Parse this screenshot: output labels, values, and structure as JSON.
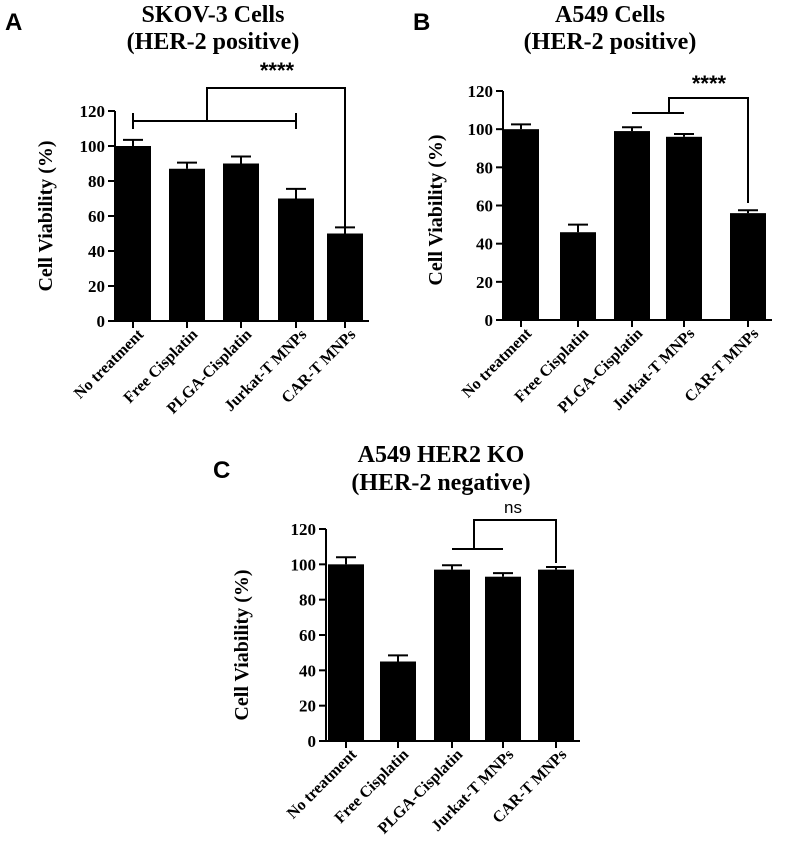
{
  "chart_data": [
    {
      "panel_label": "A",
      "type": "bar",
      "title": "SKOV-3 Cells",
      "subtitle": "(HER-2 positive)",
      "xlabel": "",
      "ylabel": "Cell  Viability (%)",
      "ylim": [
        0,
        120
      ],
      "yticks": [
        0,
        20,
        40,
        60,
        80,
        100,
        120
      ],
      "categories": [
        "No treatment",
        "Free Cisplatin",
        "PLGA-Cisplatin",
        "Jurkat-T MNPs",
        "CAR-T MNPs"
      ],
      "values": [
        100,
        87,
        90,
        70,
        50
      ],
      "errors": [
        3.5,
        3.5,
        4,
        5.5,
        3.5
      ],
      "bar_color": "#000000",
      "significance": {
        "label": "****",
        "group": [
          0,
          3
        ],
        "target": 4
      }
    },
    {
      "panel_label": "B",
      "type": "bar",
      "title": "A549 Cells",
      "subtitle": "(HER-2 positive)",
      "xlabel": "",
      "ylabel": "Cell  Viability (%)",
      "ylim": [
        0,
        120
      ],
      "yticks": [
        0,
        20,
        40,
        60,
        80,
        100,
        120
      ],
      "categories": [
        "No treatment",
        "Free Cisplatin",
        "PLGA-Cisplatin",
        "Jurkat-T MNPs",
        "CAR-T MNPs"
      ],
      "values": [
        100,
        46,
        99,
        96,
        56
      ],
      "errors": [
        2.5,
        4,
        2,
        1.5,
        1.5
      ],
      "bar_color": "#000000",
      "significance": {
        "label": "****",
        "group": [
          2,
          3
        ],
        "target": 4
      }
    },
    {
      "panel_label": "C",
      "type": "bar",
      "title": "A549 HER2 KO",
      "subtitle": "(HER-2 negative)",
      "xlabel": "",
      "ylabel": "Cell  Viability (%)",
      "ylim": [
        0,
        120
      ],
      "yticks": [
        0,
        20,
        40,
        60,
        80,
        100,
        120
      ],
      "categories": [
        "No treatment",
        "Free Cisplatin",
        "PLGA-Cisplatin",
        "Jurkat-T MNPs",
        "CAR-T MNPs"
      ],
      "values": [
        100,
        45,
        97,
        93,
        97
      ],
      "errors": [
        4,
        3.5,
        2.5,
        2,
        1.5
      ],
      "bar_color": "#000000",
      "significance": {
        "label": "ns",
        "group": [
          2,
          3
        ],
        "target": 4
      }
    }
  ]
}
